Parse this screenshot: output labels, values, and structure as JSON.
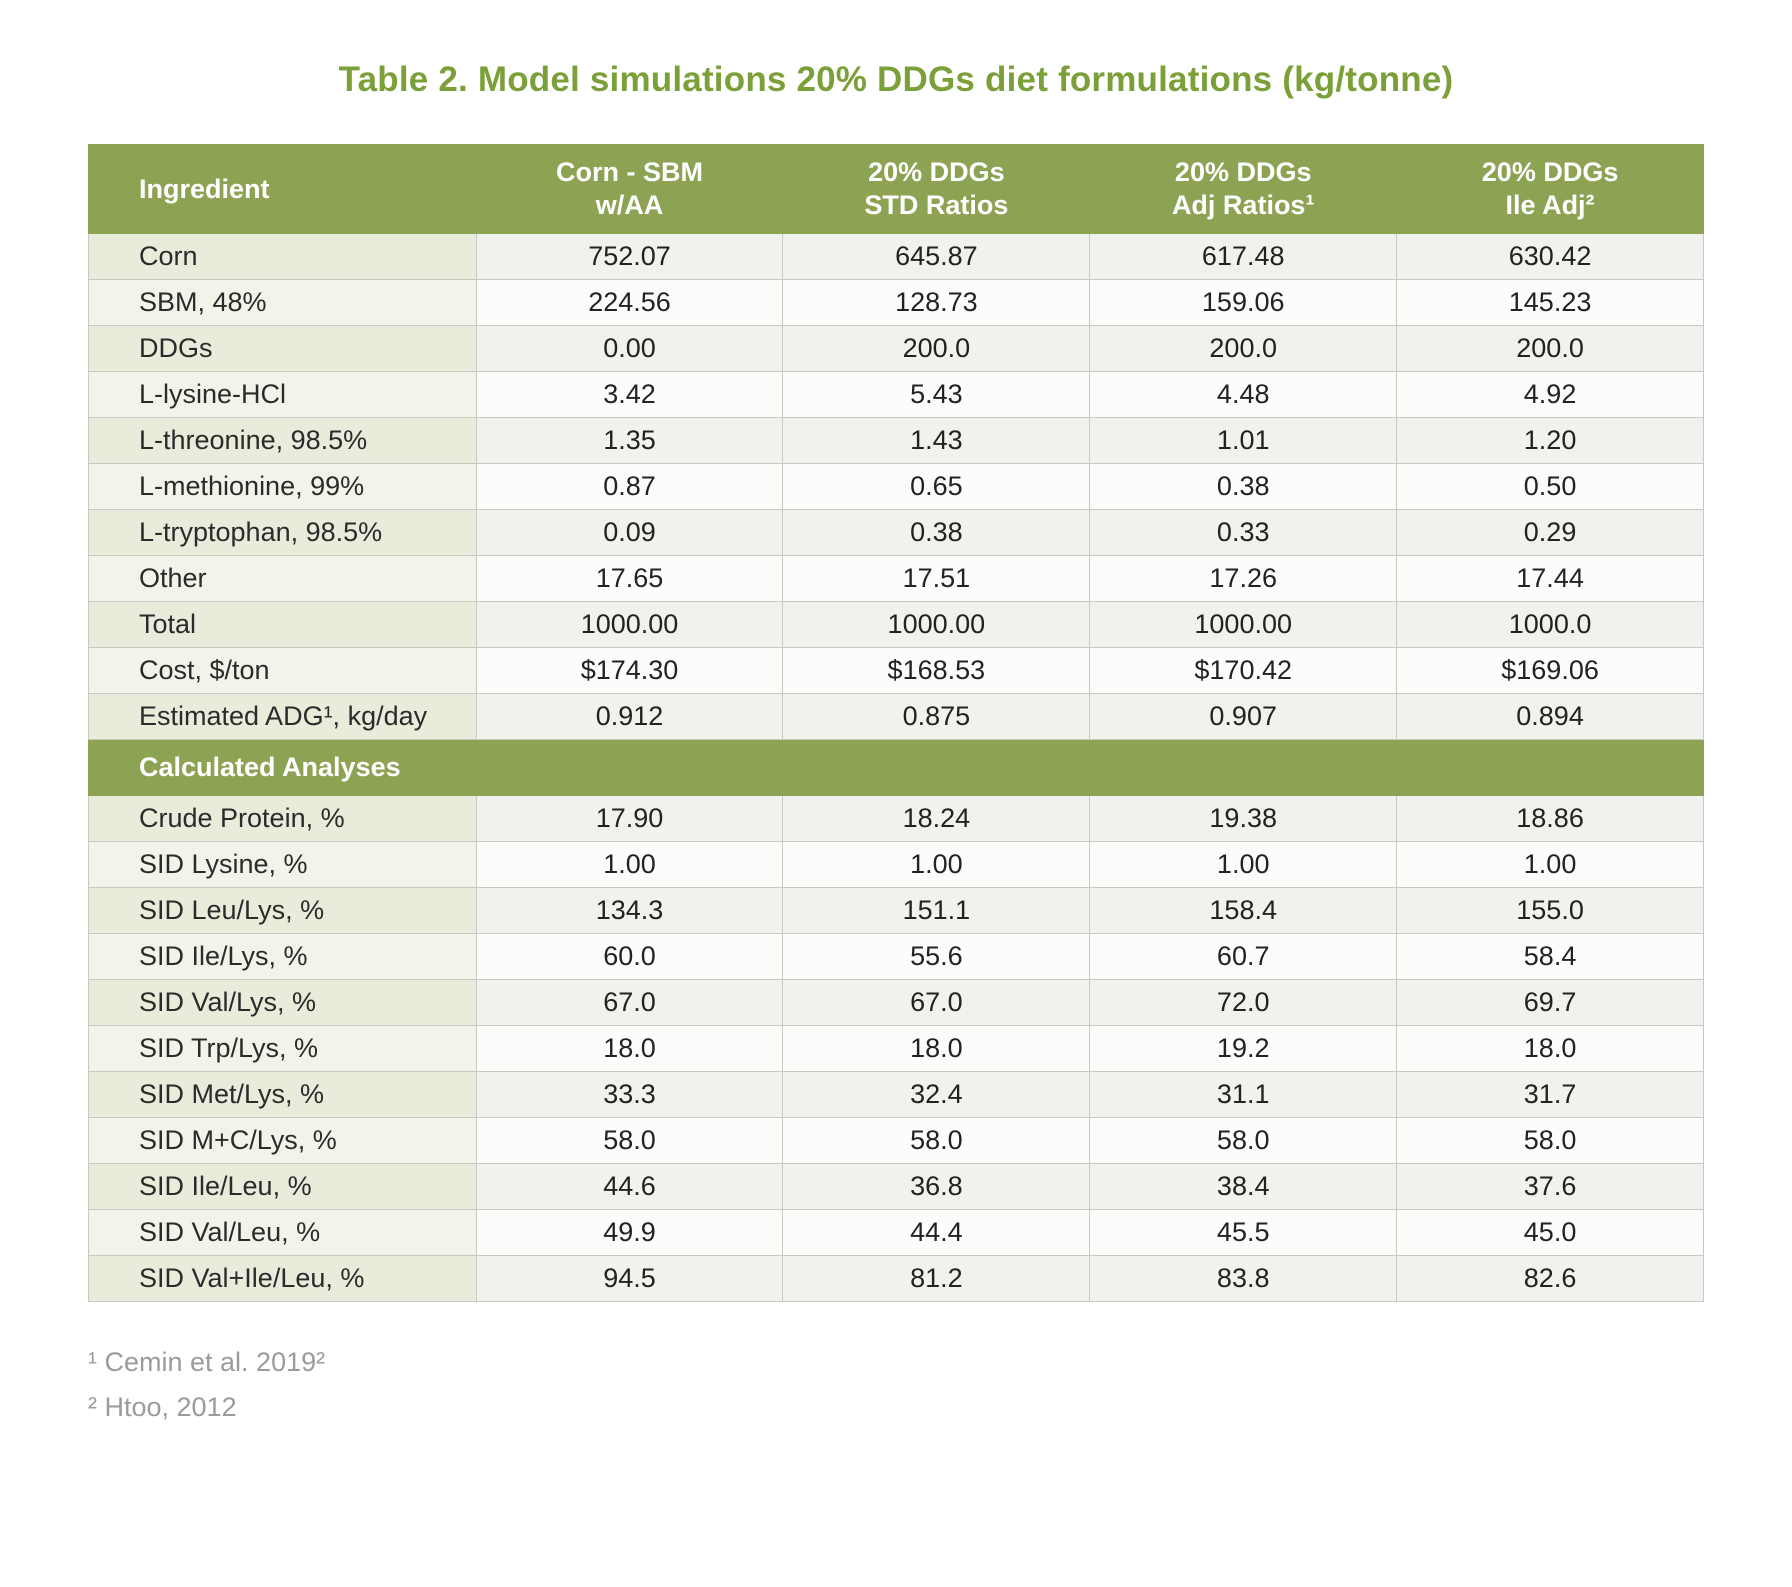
{
  "title": "Table 2. Model simulations 20% DDGs diet formulations (kg/tonne)",
  "colors": {
    "header_bg": "#8ca353",
    "title_text": "#7ba03a",
    "label_col_bg": "#e9ecdb",
    "row_shade": "#f1f1ee",
    "footnote_text": "#9b9b9b"
  },
  "table": {
    "columns": [
      "Ingredient",
      "Corn - SBM\nw/AA",
      "20% DDGs\nSTD Ratios",
      "20% DDGs\nAdj Ratios¹",
      "20% DDGs\nIle Adj²"
    ],
    "ingredient_rows": [
      {
        "label": "Corn",
        "values": [
          "752.07",
          "645.87",
          "617.48",
          "630.42"
        ]
      },
      {
        "label": "SBM, 48%",
        "values": [
          "224.56",
          "128.73",
          "159.06",
          "145.23"
        ]
      },
      {
        "label": "DDGs",
        "values": [
          "0.00",
          "200.0",
          "200.0",
          "200.0"
        ]
      },
      {
        "label": "L-lysine-HCl",
        "values": [
          "3.42",
          "5.43",
          "4.48",
          "4.92"
        ]
      },
      {
        "label": "L-threonine, 98.5%",
        "values": [
          "1.35",
          "1.43",
          "1.01",
          "1.20"
        ]
      },
      {
        "label": "L-methionine, 99%",
        "values": [
          "0.87",
          "0.65",
          "0.38",
          "0.50"
        ]
      },
      {
        "label": "L-tryptophan, 98.5%",
        "values": [
          "0.09",
          "0.38",
          "0.33",
          "0.29"
        ]
      },
      {
        "label": "Other",
        "values": [
          "17.65",
          "17.51",
          "17.26",
          "17.44"
        ]
      },
      {
        "label": "Total",
        "values": [
          "1000.00",
          "1000.00",
          "1000.00",
          "1000.0"
        ]
      },
      {
        "label": "Cost, $/ton",
        "values": [
          "$174.30",
          "$168.53",
          "$170.42",
          "$169.06"
        ]
      },
      {
        "label": "Estimated ADG¹, kg/day",
        "values": [
          "0.912",
          "0.875",
          "0.907",
          "0.894"
        ]
      }
    ],
    "section_header": "Calculated Analyses",
    "analysis_rows": [
      {
        "label": "Crude Protein, %",
        "values": [
          "17.90",
          "18.24",
          "19.38",
          "18.86"
        ]
      },
      {
        "label": "SID Lysine, %",
        "values": [
          "1.00",
          "1.00",
          "1.00",
          "1.00"
        ]
      },
      {
        "label": "SID Leu/Lys, %",
        "values": [
          "134.3",
          "151.1",
          "158.4",
          "155.0"
        ]
      },
      {
        "label": "SID Ile/Lys, %",
        "values": [
          "60.0",
          "55.6",
          "60.7",
          "58.4"
        ]
      },
      {
        "label": "SID Val/Lys, %",
        "values": [
          "67.0",
          "67.0",
          "72.0",
          "69.7"
        ]
      },
      {
        "label": "SID Trp/Lys, %",
        "values": [
          "18.0",
          "18.0",
          "19.2",
          "18.0"
        ]
      },
      {
        "label": "SID Met/Lys, %",
        "values": [
          "33.3",
          "32.4",
          "31.1",
          "31.7"
        ]
      },
      {
        "label": "SID M+C/Lys, %",
        "values": [
          "58.0",
          "58.0",
          "58.0",
          "58.0"
        ]
      },
      {
        "label": "SID Ile/Leu, %",
        "values": [
          "44.6",
          "36.8",
          "38.4",
          "37.6"
        ]
      },
      {
        "label": "SID Val/Leu, %",
        "values": [
          "49.9",
          "44.4",
          "45.5",
          "45.0"
        ]
      },
      {
        "label": "SID Val+Ile/Leu, %",
        "values": [
          "94.5",
          "81.2",
          "83.8",
          "82.6"
        ]
      }
    ]
  },
  "footnotes": [
    "¹ Cemin et al. 2019²",
    "² Htoo, 2012"
  ]
}
